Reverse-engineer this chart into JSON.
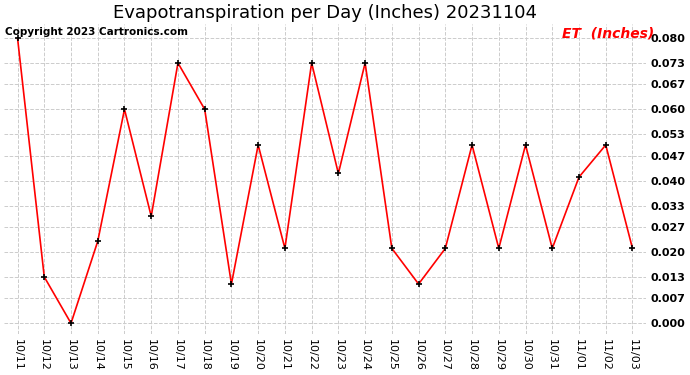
{
  "title": "Evapotranspiration per Day (Inches) 20231104",
  "legend_label": "ET  (Inches)",
  "copyright": "Copyright 2023 Cartronics.com",
  "x_labels": [
    "10/11",
    "10/12",
    "10/13",
    "10/14",
    "10/15",
    "10/16",
    "10/17",
    "10/18",
    "10/19",
    "10/20",
    "10/21",
    "10/22",
    "10/23",
    "10/24",
    "10/25",
    "10/26",
    "10/27",
    "10/28",
    "10/29",
    "10/30",
    "10/31",
    "11/01",
    "11/02",
    "11/03"
  ],
  "y_values": [
    0.08,
    0.013,
    0.0,
    0.023,
    0.06,
    0.03,
    0.073,
    0.06,
    0.011,
    0.05,
    0.021,
    0.073,
    0.042,
    0.073,
    0.021,
    0.011,
    0.021,
    0.05,
    0.021,
    0.05,
    0.021,
    0.041,
    0.05,
    0.021
  ],
  "line_color": "red",
  "marker_color": "black",
  "grid_color": "#cccccc",
  "background_color": "#ffffff",
  "y_ticks": [
    0.0,
    0.007,
    0.013,
    0.02,
    0.027,
    0.033,
    0.04,
    0.047,
    0.053,
    0.06,
    0.067,
    0.073,
    0.08
  ],
  "ylim": [
    -0.003,
    0.084
  ],
  "title_fontsize": 13,
  "legend_fontsize": 10,
  "tick_fontsize": 8,
  "copyright_fontsize": 7.5
}
